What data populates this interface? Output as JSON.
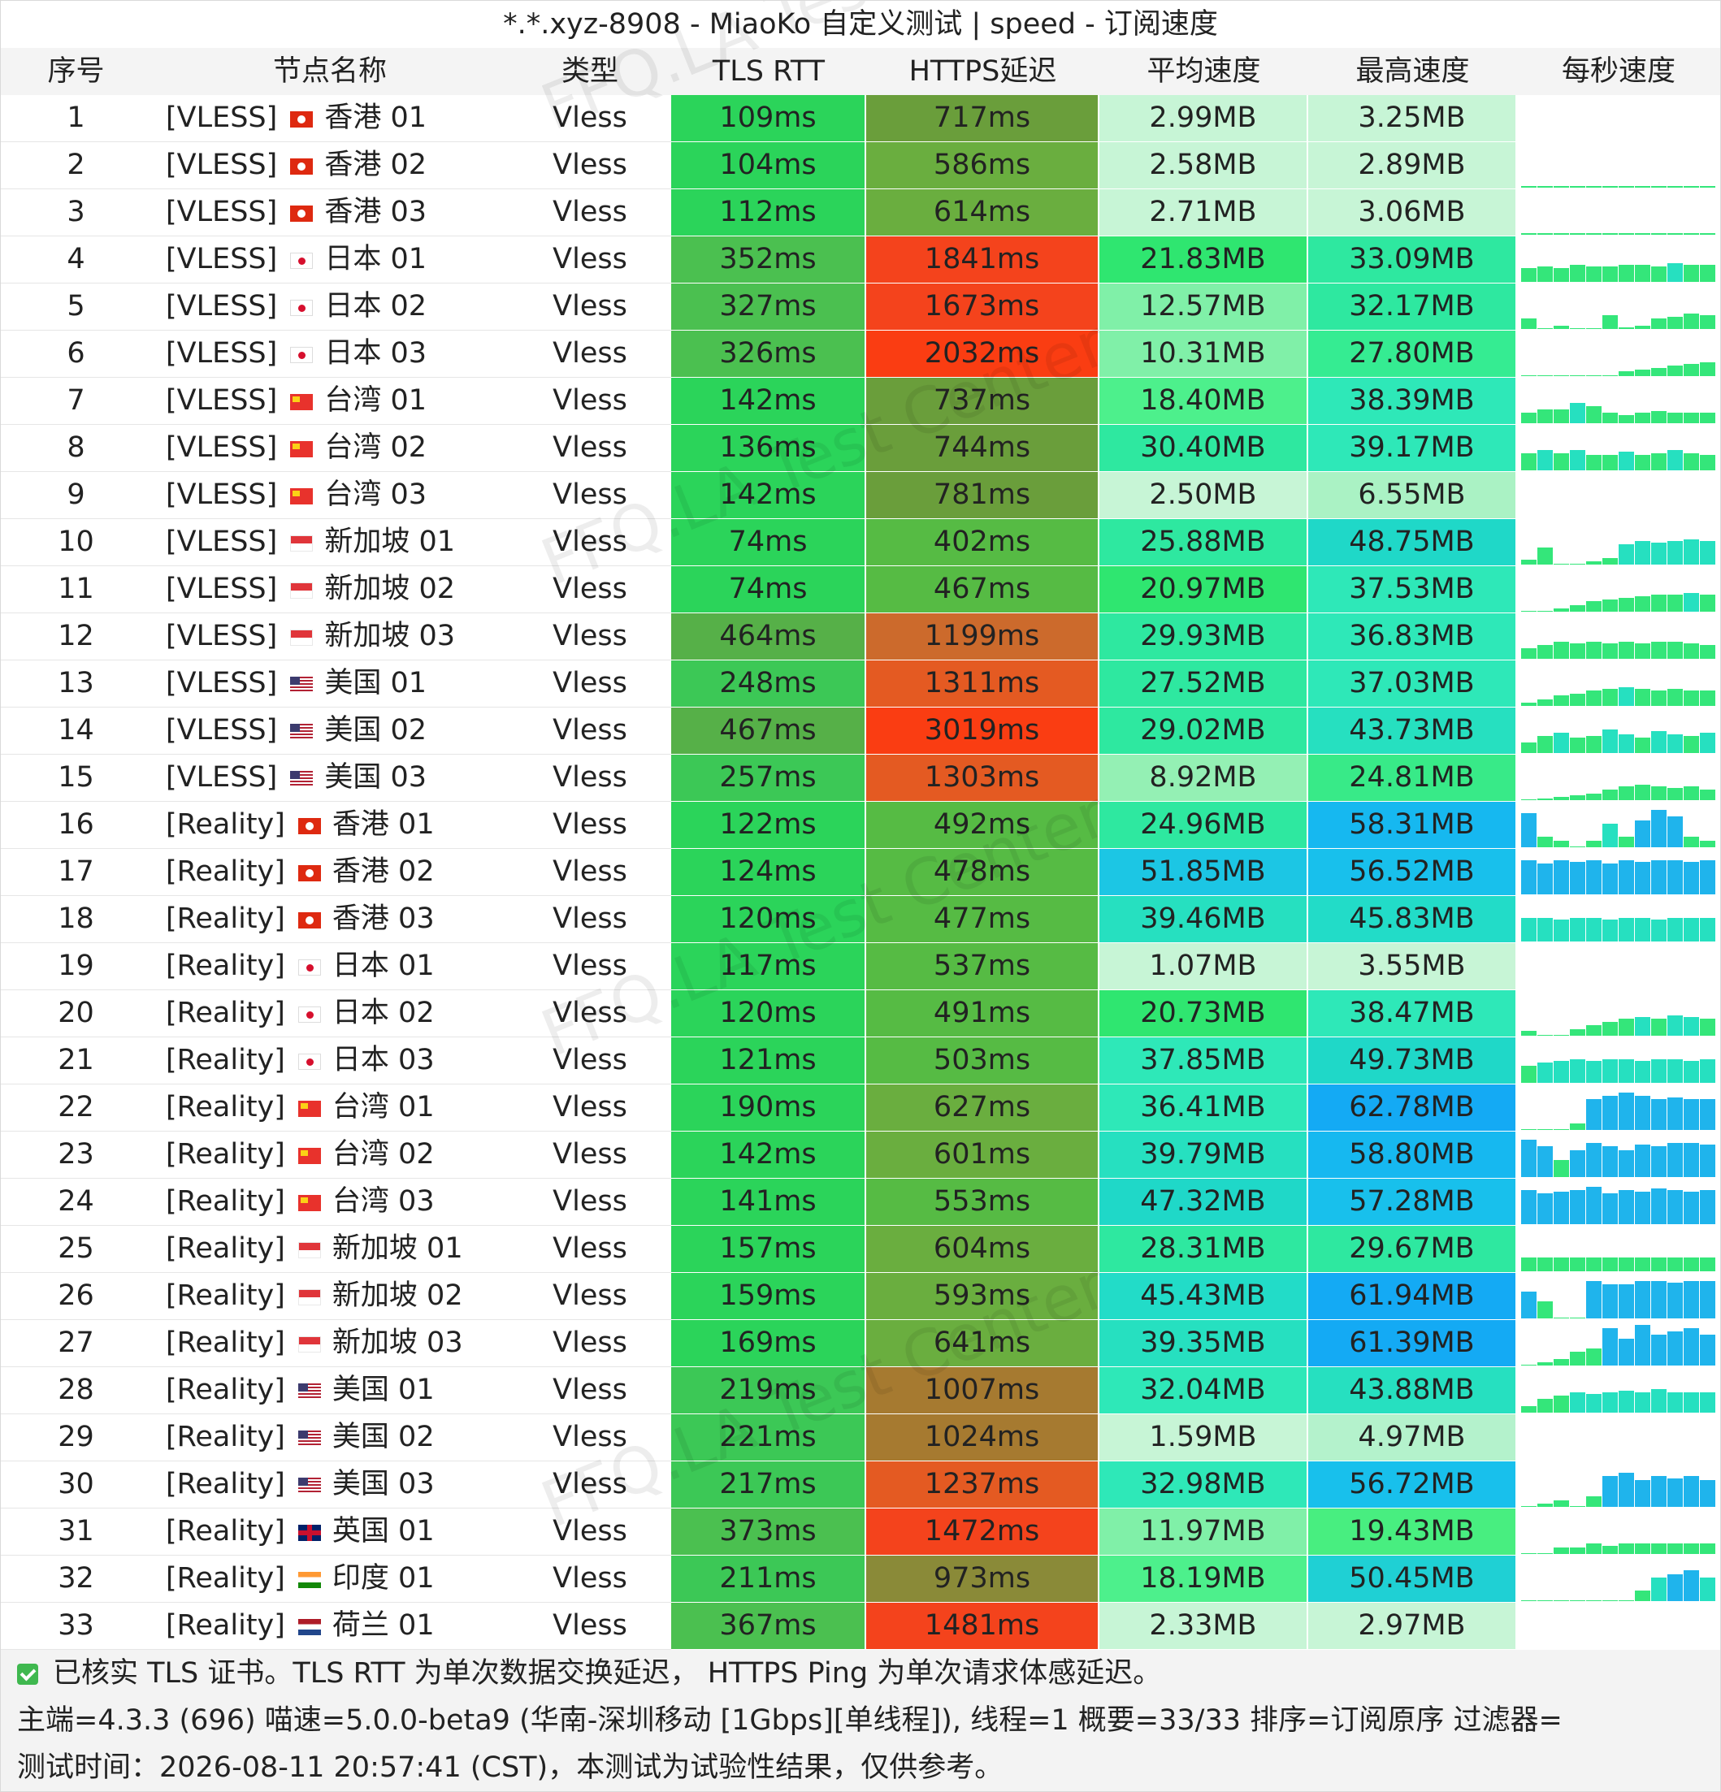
{
  "title": "*.*.xyz-8908 - MiaoKo 自定义测试 | speed - 订阅速度",
  "headers": [
    "序号",
    "节点名称",
    "类型",
    "TLS RTT",
    "HTTPS延迟",
    "平均速度",
    "最高速度",
    "每秒速度"
  ],
  "watermark": "FFQ.LA Test Center",
  "rows": [
    {
      "idx": "1",
      "tag": "[VLESS]",
      "flag": "hk",
      "region": "香港 01",
      "type": "Vless",
      "rtt": "109ms",
      "https": "717ms",
      "avg": "2.99MB",
      "max": "3.25MB",
      "c_rtt": "#2bd45a",
      "c_https": "#6a9e3b",
      "c_avg": "#c7f5d6",
      "c_max": "#c7f5d6",
      "spark": []
    },
    {
      "idx": "2",
      "tag": "[VLESS]",
      "flag": "hk",
      "region": "香港 02",
      "type": "Vless",
      "rtt": "104ms",
      "https": "586ms",
      "avg": "2.58MB",
      "max": "2.89MB",
      "c_rtt": "#2bd45a",
      "c_https": "#6aae3f",
      "c_avg": "#c7f5d6",
      "c_max": "#c7f5d6",
      "spark": [
        1,
        1,
        1,
        1,
        1,
        1,
        1,
        1,
        1,
        1,
        1,
        1
      ]
    },
    {
      "idx": "3",
      "tag": "[VLESS]",
      "flag": "hk",
      "region": "香港 03",
      "type": "Vless",
      "rtt": "112ms",
      "https": "614ms",
      "avg": "2.71MB",
      "max": "3.06MB",
      "c_rtt": "#2bd45a",
      "c_https": "#6aae3f",
      "c_avg": "#c7f5d6",
      "c_max": "#c7f5d6",
      "spark": [
        1,
        1,
        1,
        1,
        1,
        1,
        1,
        1,
        1,
        1,
        1,
        1
      ]
    },
    {
      "idx": "4",
      "tag": "[VLESS]",
      "flag": "jp",
      "region": "日本 01",
      "type": "Vless",
      "rtt": "352ms",
      "https": "1841ms",
      "avg": "21.83MB",
      "max": "33.09MB",
      "c_rtt": "#4bc050",
      "c_https": "#f4431c",
      "c_avg": "#2fe670",
      "c_max": "#2ee8a0",
      "spark": [
        8,
        9,
        8,
        10,
        9,
        9,
        10,
        10,
        9,
        11,
        10,
        10
      ]
    },
    {
      "idx": "5",
      "tag": "[VLESS]",
      "flag": "jp",
      "region": "日本 02",
      "type": "Vless",
      "rtt": "327ms",
      "https": "1673ms",
      "avg": "12.57MB",
      "max": "32.17MB",
      "c_rtt": "#4bc050",
      "c_https": "#f4431c",
      "c_avg": "#80f0a8",
      "c_max": "#2ee8a0",
      "spark": [
        6,
        0,
        2,
        0,
        0,
        8,
        1,
        2,
        6,
        7,
        9,
        8
      ]
    },
    {
      "idx": "6",
      "tag": "[VLESS]",
      "flag": "jp",
      "region": "日本 03",
      "type": "Vless",
      "rtt": "326ms",
      "https": "2032ms",
      "avg": "10.31MB",
      "max": "27.80MB",
      "c_rtt": "#4bc050",
      "c_https": "#fa3d12",
      "c_avg": "#80f0a8",
      "c_max": "#35ec92",
      "spark": [
        0,
        0,
        0,
        0,
        0,
        0,
        3,
        4,
        5,
        6,
        7,
        8
      ]
    },
    {
      "idx": "7",
      "tag": "[VLESS]",
      "flag": "tw",
      "region": "台湾 01",
      "type": "Vless",
      "rtt": "142ms",
      "https": "737ms",
      "avg": "18.40MB",
      "max": "38.39MB",
      "c_rtt": "#2bd45a",
      "c_https": "#6a9e3b",
      "c_avg": "#4df08c",
      "c_max": "#2ee8b8",
      "spark": [
        6,
        8,
        8,
        12,
        10,
        6,
        5,
        6,
        7,
        6,
        6,
        6
      ]
    },
    {
      "idx": "8",
      "tag": "[VLESS]",
      "flag": "tw",
      "region": "台湾 02",
      "type": "Vless",
      "rtt": "136ms",
      "https": "744ms",
      "avg": "30.40MB",
      "max": "39.17MB",
      "c_rtt": "#2bd45a",
      "c_https": "#6a9e3b",
      "c_avg": "#2ee8a0",
      "c_max": "#2ee8b8",
      "spark": [
        10,
        12,
        10,
        12,
        9,
        9,
        11,
        9,
        10,
        12,
        10,
        9
      ]
    },
    {
      "idx": "9",
      "tag": "[VLESS]",
      "flag": "tw",
      "region": "台湾 03",
      "type": "Vless",
      "rtt": "142ms",
      "https": "781ms",
      "avg": "2.50MB",
      "max": "6.55MB",
      "c_rtt": "#2bd45a",
      "c_https": "#6a9e3b",
      "c_avg": "#c7f5d6",
      "c_max": "#aaf2c4",
      "spark": []
    },
    {
      "idx": "10",
      "tag": "[VLESS]",
      "flag": "sg",
      "region": "新加坡 01",
      "type": "Vless",
      "rtt": "74ms",
      "https": "402ms",
      "avg": "25.88MB",
      "max": "48.75MB",
      "c_rtt": "#2bd45a",
      "c_https": "#56bb44",
      "c_avg": "#2ee8a0",
      "c_max": "#1fd8c8",
      "spark": [
        3,
        10,
        0,
        0,
        2,
        4,
        12,
        14,
        13,
        14,
        15,
        14
      ]
    },
    {
      "idx": "11",
      "tag": "[VLESS]",
      "flag": "sg",
      "region": "新加坡 02",
      "type": "Vless",
      "rtt": "74ms",
      "https": "467ms",
      "avg": "20.97MB",
      "max": "37.53MB",
      "c_rtt": "#2bd45a",
      "c_https": "#56bb44",
      "c_avg": "#2fe670",
      "c_max": "#2ee8b8",
      "spark": [
        0,
        0,
        2,
        4,
        6,
        7,
        8,
        9,
        10,
        10,
        11,
        10
      ]
    },
    {
      "idx": "12",
      "tag": "[VLESS]",
      "flag": "sg",
      "region": "新加坡 03",
      "type": "Vless",
      "rtt": "464ms",
      "https": "1199ms",
      "avg": "29.93MB",
      "max": "36.83MB",
      "c_rtt": "#56b048",
      "c_https": "#cc6a2c",
      "c_avg": "#2ee8a0",
      "c_max": "#2ee8b8",
      "spark": [
        6,
        8,
        10,
        9,
        10,
        9,
        10,
        9,
        10,
        10,
        9,
        8
      ]
    },
    {
      "idx": "13",
      "tag": "[VLESS]",
      "flag": "us",
      "region": "美国 01",
      "type": "Vless",
      "rtt": "248ms",
      "https": "1311ms",
      "avg": "27.52MB",
      "max": "37.03MB",
      "c_rtt": "#3cc856",
      "c_https": "#e45a22",
      "c_avg": "#2ee8a0",
      "c_max": "#2ee8b8",
      "spark": [
        2,
        4,
        6,
        7,
        9,
        10,
        11,
        10,
        9,
        10,
        9,
        9
      ]
    },
    {
      "idx": "14",
      "tag": "[VLESS]",
      "flag": "us",
      "region": "美国 02",
      "type": "Vless",
      "rtt": "467ms",
      "https": "3019ms",
      "avg": "29.02MB",
      "max": "43.73MB",
      "c_rtt": "#56b048",
      "c_https": "#fa3d12",
      "c_avg": "#2ee8a0",
      "c_max": "#26e0c0",
      "spark": [
        6,
        10,
        12,
        9,
        10,
        14,
        11,
        9,
        13,
        11,
        10,
        12
      ]
    },
    {
      "idx": "15",
      "tag": "[VLESS]",
      "flag": "us",
      "region": "美国 03",
      "type": "Vless",
      "rtt": "257ms",
      "https": "1303ms",
      "avg": "8.92MB",
      "max": "24.81MB",
      "c_rtt": "#3cc856",
      "c_https": "#e45a22",
      "c_avg": "#94f0b4",
      "c_max": "#38ea88",
      "spark": [
        0,
        1,
        2,
        3,
        4,
        6,
        8,
        9,
        8,
        7,
        8,
        6
      ]
    },
    {
      "idx": "16",
      "tag": "[Reality]",
      "flag": "hk",
      "region": "香港 01",
      "type": "Vless",
      "rtt": "122ms",
      "https": "492ms",
      "avg": "24.96MB",
      "max": "58.31MB",
      "c_rtt": "#2bd45a",
      "c_https": "#56bb44",
      "c_avg": "#2ee8a0",
      "c_max": "#16b8f0",
      "spark": [
        20,
        6,
        4,
        0,
        4,
        14,
        6,
        16,
        22,
        18,
        6,
        4
      ]
    },
    {
      "idx": "17",
      "tag": "[Reality]",
      "flag": "hk",
      "region": "香港 02",
      "type": "Vless",
      "rtt": "124ms",
      "https": "478ms",
      "avg": "51.85MB",
      "max": "56.52MB",
      "c_rtt": "#2bd45a",
      "c_https": "#56bb44",
      "c_avg": "#1cc6e4",
      "c_max": "#18c0ec",
      "spark": [
        20,
        18,
        20,
        19,
        20,
        18,
        20,
        19,
        20,
        20,
        19,
        20
      ]
    },
    {
      "idx": "18",
      "tag": "[Reality]",
      "flag": "hk",
      "region": "香港 03",
      "type": "Vless",
      "rtt": "120ms",
      "https": "477ms",
      "avg": "39.46MB",
      "max": "45.83MB",
      "c_rtt": "#2bd45a",
      "c_https": "#56bb44",
      "c_avg": "#26e0c0",
      "c_max": "#22dcc8",
      "spark": [
        14,
        14,
        13,
        14,
        14,
        13,
        14,
        14,
        13,
        14,
        14,
        14
      ]
    },
    {
      "idx": "19",
      "tag": "[Reality]",
      "flag": "jp",
      "region": "日本 01",
      "type": "Vless",
      "rtt": "117ms",
      "https": "537ms",
      "avg": "1.07MB",
      "max": "3.55MB",
      "c_rtt": "#2bd45a",
      "c_https": "#56bb44",
      "c_avg": "#c7f5d6",
      "c_max": "#c7f5d6",
      "spark": []
    },
    {
      "idx": "20",
      "tag": "[Reality]",
      "flag": "jp",
      "region": "日本 02",
      "type": "Vless",
      "rtt": "120ms",
      "https": "491ms",
      "avg": "20.73MB",
      "max": "38.47MB",
      "c_rtt": "#2bd45a",
      "c_https": "#56bb44",
      "c_avg": "#2fe670",
      "c_max": "#2ee8b8",
      "spark": [
        3,
        0,
        0,
        4,
        6,
        8,
        10,
        11,
        10,
        12,
        11,
        10
      ]
    },
    {
      "idx": "21",
      "tag": "[Reality]",
      "flag": "jp",
      "region": "日本 03",
      "type": "Vless",
      "rtt": "121ms",
      "https": "503ms",
      "avg": "37.85MB",
      "max": "49.73MB",
      "c_rtt": "#2bd45a",
      "c_https": "#56bb44",
      "c_avg": "#2ee8b8",
      "c_max": "#1fd8c8",
      "spark": [
        10,
        12,
        13,
        14,
        13,
        14,
        14,
        13,
        14,
        14,
        13,
        14
      ]
    },
    {
      "idx": "22",
      "tag": "[Reality]",
      "flag": "tw",
      "region": "台湾 01",
      "type": "Vless",
      "rtt": "190ms",
      "https": "627ms",
      "avg": "36.41MB",
      "max": "62.78MB",
      "c_rtt": "#2bd45a",
      "c_https": "#6aae3f",
      "c_avg": "#2ee8b8",
      "c_max": "#14aaf4",
      "spark": [
        0,
        0,
        0,
        4,
        18,
        20,
        22,
        20,
        18,
        19,
        18,
        18
      ]
    },
    {
      "idx": "23",
      "tag": "[Reality]",
      "flag": "tw",
      "region": "台湾 02",
      "type": "Vless",
      "rtt": "142ms",
      "https": "601ms",
      "avg": "39.79MB",
      "max": "58.80MB",
      "c_rtt": "#2bd45a",
      "c_https": "#6aae3f",
      "c_avg": "#26e0c0",
      "c_max": "#16b8f0",
      "spark": [
        22,
        18,
        10,
        16,
        20,
        18,
        16,
        19,
        18,
        20,
        20,
        19
      ]
    },
    {
      "idx": "24",
      "tag": "[Reality]",
      "flag": "tw",
      "region": "台湾 03",
      "type": "Vless",
      "rtt": "141ms",
      "https": "553ms",
      "avg": "47.32MB",
      "max": "57.28MB",
      "c_rtt": "#2bd45a",
      "c_https": "#56bb44",
      "c_avg": "#1fd8c8",
      "c_max": "#18c0ec",
      "spark": [
        20,
        18,
        19,
        20,
        22,
        18,
        20,
        19,
        21,
        20,
        19,
        20
      ]
    },
    {
      "idx": "25",
      "tag": "[Reality]",
      "flag": "sg",
      "region": "新加坡 01",
      "type": "Vless",
      "rtt": "157ms",
      "https": "604ms",
      "avg": "28.31MB",
      "max": "29.67MB",
      "c_rtt": "#2bd45a",
      "c_https": "#6aae3f",
      "c_avg": "#2ee8a0",
      "c_max": "#2ee8a0",
      "spark": [
        8,
        8,
        8,
        8,
        8,
        8,
        8,
        8,
        8,
        8,
        8,
        8
      ]
    },
    {
      "idx": "26",
      "tag": "[Reality]",
      "flag": "sg",
      "region": "新加坡 02",
      "type": "Vless",
      "rtt": "159ms",
      "https": "593ms",
      "avg": "45.43MB",
      "max": "61.94MB",
      "c_rtt": "#2bd45a",
      "c_https": "#6aae3f",
      "c_avg": "#22dcc8",
      "c_max": "#14aaf4",
      "spark": [
        16,
        10,
        0,
        0,
        22,
        20,
        20,
        22,
        22,
        21,
        22,
        22
      ]
    },
    {
      "idx": "27",
      "tag": "[Reality]",
      "flag": "sg",
      "region": "新加坡 03",
      "type": "Vless",
      "rtt": "169ms",
      "https": "641ms",
      "avg": "39.35MB",
      "max": "61.39MB",
      "c_rtt": "#2bd45a",
      "c_https": "#6aae3f",
      "c_avg": "#26e0c0",
      "c_max": "#14aaf4",
      "spark": [
        0,
        2,
        4,
        8,
        10,
        22,
        16,
        24,
        18,
        20,
        22,
        18
      ]
    },
    {
      "idx": "28",
      "tag": "[Reality]",
      "flag": "us",
      "region": "美国 01",
      "type": "Vless",
      "rtt": "219ms",
      "https": "1007ms",
      "avg": "32.04MB",
      "max": "43.88MB",
      "c_rtt": "#3cc856",
      "c_https": "#a67a30",
      "c_avg": "#2ee8b8",
      "c_max": "#26e0c0",
      "spark": [
        4,
        8,
        10,
        12,
        11,
        12,
        13,
        12,
        14,
        12,
        12,
        12
      ]
    },
    {
      "idx": "29",
      "tag": "[Reality]",
      "flag": "us",
      "region": "美国 02",
      "type": "Vless",
      "rtt": "221ms",
      "https": "1024ms",
      "avg": "1.59MB",
      "max": "4.97MB",
      "c_rtt": "#3cc856",
      "c_https": "#a67a30",
      "c_avg": "#c7f5d6",
      "c_max": "#b4f2cc",
      "spark": []
    },
    {
      "idx": "30",
      "tag": "[Reality]",
      "flag": "us",
      "region": "美国 03",
      "type": "Vless",
      "rtt": "217ms",
      "https": "1237ms",
      "avg": "32.98MB",
      "max": "56.72MB",
      "c_rtt": "#3cc856",
      "c_https": "#e45a22",
      "c_avg": "#2ee8b8",
      "c_max": "#18c0ec",
      "spark": [
        0,
        2,
        4,
        0,
        6,
        18,
        20,
        16,
        18,
        17,
        18,
        16
      ]
    },
    {
      "idx": "31",
      "tag": "[Reality]",
      "flag": "gb",
      "region": "英国 01",
      "type": "Vless",
      "rtt": "373ms",
      "https": "1472ms",
      "avg": "11.97MB",
      "max": "19.43MB",
      "c_rtt": "#4bc050",
      "c_https": "#f4431c",
      "c_avg": "#80f0a8",
      "c_max": "#48ee80",
      "spark": [
        0,
        0,
        4,
        4,
        6,
        5,
        6,
        6,
        6,
        6,
        6,
        6
      ]
    },
    {
      "idx": "32",
      "tag": "[Reality]",
      "flag": "in",
      "region": "印度 01",
      "type": "Vless",
      "rtt": "211ms",
      "https": "973ms",
      "avg": "18.19MB",
      "max": "50.45MB",
      "c_rtt": "#3cc856",
      "c_https": "#8a8a38",
      "c_avg": "#4df08c",
      "c_max": "#1fd0d4",
      "spark": [
        0,
        0,
        0,
        0,
        0,
        0,
        0,
        6,
        14,
        16,
        18,
        14
      ]
    },
    {
      "idx": "33",
      "tag": "[Reality]",
      "flag": "nl",
      "region": "荷兰 01",
      "type": "Vless",
      "rtt": "367ms",
      "https": "1481ms",
      "avg": "2.33MB",
      "max": "2.97MB",
      "c_rtt": "#4bc050",
      "c_https": "#f4431c",
      "c_avg": "#c7f5d6",
      "c_max": "#c7f5d6",
      "spark": []
    }
  ],
  "footer": {
    "line1": "已核实 TLS 证书。TLS RTT 为单次数据交换延迟，  HTTPS Ping 为单次请求体感延迟。",
    "line2": "主端=4.3.3 (696) 喵速=5.0.0-beta9 (华南-深圳移动 [1Gbps][单线程]), 线程=1 概要=33/33 排序=订阅原序 过滤器=",
    "line3": "测试时间：2026-08-11 20:57:41 (CST)，本测试为试验性结果，仅供参考。"
  },
  "colors": {
    "header_bg": "#f4f4f4",
    "footer_bg": "#f3f3f3",
    "row_line": "#e6e6e6",
    "check": "#3fb84f"
  }
}
